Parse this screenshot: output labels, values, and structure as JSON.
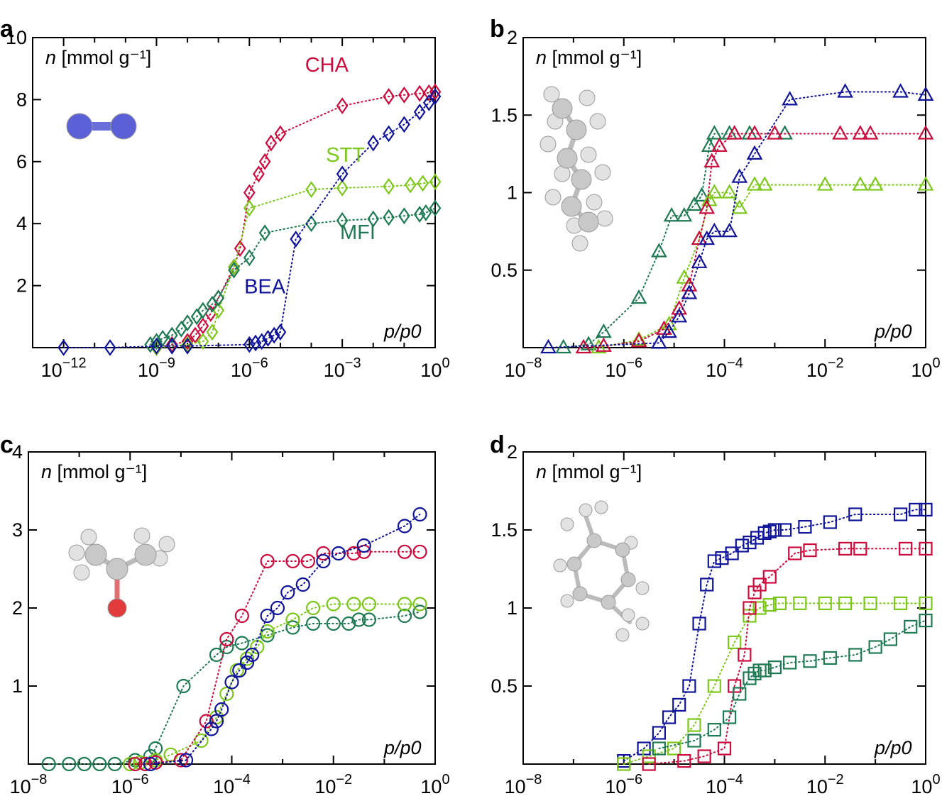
{
  "figure_labels": [
    "a",
    "b",
    "c",
    "d"
  ],
  "colors": {
    "CHA": "#cc0a3c",
    "STT": "#7cc81a",
    "MFI": "#1e7a52",
    "BEA": "#10149b"
  },
  "chart_data": [
    {
      "panel": "a",
      "type": "scatter",
      "marker": "diamond",
      "molecule": "molecule-N2",
      "ylabel": "n [mmol g⁻¹]",
      "ylabel_var": "n",
      "ylabel_unit": "[mmol g⁻¹]",
      "xlabel": "p/p0",
      "xscale": "log",
      "xlim_exp": [
        -13,
        0
      ],
      "xticks_exp": [
        -12,
        -9,
        -6,
        -3,
        0
      ],
      "ylim": [
        0,
        10
      ],
      "yticks": [
        2,
        4,
        6,
        8,
        10
      ],
      "series_labels": [
        {
          "name": "CHA",
          "text": "CHA",
          "lx": -3.5,
          "ly": 8.9
        },
        {
          "name": "STT",
          "text": "STT",
          "lx": -2.9,
          "ly": 6.0
        },
        {
          "name": "MFI",
          "text": "MFI",
          "lx": -2.5,
          "ly": 3.5
        },
        {
          "name": "BEA",
          "text": "BEA",
          "lx": -5.5,
          "ly": 1.75
        }
      ],
      "series": [
        {
          "name": "CHA",
          "x": [
            -9,
            -8.5,
            -8,
            -7.75,
            -7.5,
            -7.25,
            -7,
            -6.5,
            -6.3,
            -6,
            -5.7,
            -5.5,
            -5.3,
            -5,
            -3,
            -1.5,
            -1,
            -0.5,
            -0.2,
            0
          ],
          "y": [
            0,
            0.1,
            0.2,
            0.4,
            0.7,
            1.1,
            1.6,
            2.6,
            3.2,
            5.0,
            5.6,
            6.0,
            6.6,
            6.9,
            7.8,
            8.1,
            8.15,
            8.2,
            8.22,
            8.25
          ]
        },
        {
          "name": "STT",
          "x": [
            -9,
            -8.5,
            -8,
            -7.5,
            -7.2,
            -7,
            -6.5,
            -6,
            -4,
            -3,
            -1.5,
            -0.8,
            -0.4,
            0
          ],
          "y": [
            0,
            0.05,
            0.1,
            0.2,
            0.5,
            1.2,
            2.6,
            4.5,
            5.1,
            5.15,
            5.2,
            5.25,
            5.3,
            5.35
          ]
        },
        {
          "name": "MFI",
          "x": [
            -9.2,
            -9,
            -8.8,
            -8.5,
            -8.2,
            -8,
            -7.7,
            -7.5,
            -7.2,
            -7,
            -6.5,
            -6,
            -5.5,
            -4,
            -3,
            -2,
            -1.5,
            -1,
            -0.5,
            -0.3,
            0
          ],
          "y": [
            0.1,
            0.2,
            0.3,
            0.4,
            0.6,
            0.8,
            1.0,
            1.2,
            1.4,
            1.6,
            2.5,
            2.9,
            3.7,
            4.0,
            4.1,
            4.15,
            4.2,
            4.25,
            4.3,
            4.35,
            4.5
          ]
        },
        {
          "name": "BEA",
          "x": [
            -12,
            -10.5,
            -9,
            -8.5,
            -8,
            -6,
            -5.8,
            -5.6,
            -5.4,
            -5.2,
            -5,
            -4.5,
            -3,
            -2,
            -1.5,
            -1,
            -0.5,
            -0.2,
            0
          ],
          "y": [
            0,
            0,
            0.05,
            0.05,
            0.05,
            0.1,
            0.15,
            0.2,
            0.3,
            0.4,
            0.5,
            3.5,
            5.6,
            6.6,
            6.9,
            7.2,
            7.6,
            7.9,
            8.1
          ]
        }
      ]
    },
    {
      "panel": "b",
      "type": "scatter",
      "marker": "triangle",
      "molecule": "molecule-hexane",
      "ylabel": "n [mmol g⁻¹]",
      "ylabel_var": "n",
      "ylabel_unit": "[mmol g⁻¹]",
      "xlabel": "p/p0",
      "xscale": "log",
      "xlim_exp": [
        -8,
        0
      ],
      "xticks_exp": [
        -8,
        -6,
        -4,
        -2,
        0
      ],
      "ylim": [
        0,
        2
      ],
      "yticks": [
        0.5,
        1,
        1.5,
        2
      ],
      "ytick_labels": [
        "0.5",
        "1",
        "1.5",
        "2"
      ],
      "series": [
        {
          "name": "MFI",
          "x": [
            -7.2,
            -6.7,
            -6.4,
            -5.7,
            -5.3,
            -5.05,
            -4.8,
            -4.6,
            -4.45,
            -4.3,
            -4.2,
            -3.9,
            -3.5,
            -2.8
          ],
          "y": [
            0,
            0.02,
            0.1,
            0.32,
            0.62,
            0.85,
            0.85,
            0.92,
            0.98,
            1.3,
            1.38,
            1.38,
            1.38,
            1.38
          ]
        },
        {
          "name": "STT",
          "x": [
            -6.5,
            -5.7,
            -5.1,
            -4.8,
            -4.5,
            -4.3,
            -4.2,
            -3.9,
            -3.7,
            -3.4,
            -3.2,
            -2,
            -1.3,
            -1,
            0
          ],
          "y": [
            0,
            0.05,
            0.15,
            0.45,
            0.7,
            0.95,
            1.0,
            1.0,
            0.9,
            1.05,
            1.05,
            1.05,
            1.05,
            1.05,
            1.05
          ]
        },
        {
          "name": "CHA",
          "x": [
            -6.8,
            -6.4,
            -5.7,
            -5.2,
            -4.9,
            -4.7,
            -4.5,
            -4.35,
            -4.25,
            -4.1,
            -3.8,
            -3.4,
            -3,
            -1.7,
            -1.3,
            -1.1,
            0
          ],
          "y": [
            0,
            0.01,
            0.04,
            0.12,
            0.25,
            0.4,
            0.7,
            0.9,
            1.2,
            1.3,
            1.38,
            1.38,
            1.38,
            1.38,
            1.38,
            1.38,
            1.38
          ]
        },
        {
          "name": "BEA",
          "x": [
            -7.5,
            -5.3,
            -5.1,
            -4.9,
            -4.7,
            -4.5,
            -4.35,
            -4.2,
            -3.9,
            -3.7,
            -3.4,
            -2.7,
            -1.6,
            -0.5,
            0
          ],
          "y": [
            0,
            0.03,
            0.1,
            0.2,
            0.35,
            0.55,
            0.7,
            0.75,
            0.75,
            1.1,
            1.25,
            1.6,
            1.65,
            1.65,
            1.63
          ]
        }
      ]
    },
    {
      "panel": "c",
      "type": "scatter",
      "marker": "circle",
      "molecule": "molecule-acetone",
      "ylabel": "n [mmol g⁻¹]",
      "ylabel_var": "n",
      "ylabel_unit": "[mmol g⁻¹]",
      "xlabel": "p/p0",
      "xscale": "log",
      "xlim_exp": [
        -8,
        0
      ],
      "xticks_exp": [
        -8,
        -6,
        -4,
        -2,
        0
      ],
      "ylim": [
        0,
        4
      ],
      "yticks": [
        1,
        2,
        3,
        4
      ],
      "series": [
        {
          "name": "MFI",
          "x": [
            -7.6,
            -7.2,
            -6.9,
            -6.6,
            -6.3,
            -5.9,
            -5.6,
            -5.5,
            -4.95,
            -4.3,
            -4.1,
            -3.8,
            -3.3,
            -2.8,
            -2.4,
            -2,
            -1.7,
            -1.5,
            -1.3,
            -0.6,
            -0.3
          ],
          "y": [
            0,
            0,
            0,
            0,
            0,
            0.05,
            0.1,
            0.2,
            1.0,
            1.4,
            1.5,
            1.55,
            1.65,
            1.75,
            1.8,
            1.8,
            1.8,
            1.85,
            1.85,
            1.9,
            1.95
          ]
        },
        {
          "name": "STT",
          "x": [
            -6,
            -5.8,
            -5.5,
            -5.2,
            -4.6,
            -4.3,
            -4.1,
            -3.9,
            -3.7,
            -3.5,
            -3.3,
            -2.8,
            -2.4,
            -2,
            -1.6,
            -1.3,
            -0.6,
            -0.3
          ],
          "y": [
            0,
            0.02,
            0.05,
            0.12,
            0.3,
            0.6,
            0.9,
            1.2,
            1.35,
            1.5,
            1.7,
            1.85,
            2.0,
            2.05,
            2.05,
            2.05,
            2.05,
            2.05
          ]
        },
        {
          "name": "CHA",
          "x": [
            -5.9,
            -5.7,
            -5.5,
            -5,
            -4.5,
            -4.1,
            -3.8,
            -3.3,
            -2.8,
            -2.5,
            -2.2,
            -1.6,
            -1.4,
            -0.6,
            -0.3
          ],
          "y": [
            0,
            0,
            0.02,
            0.05,
            0.55,
            1.6,
            1.9,
            2.6,
            2.6,
            2.6,
            2.7,
            2.7,
            2.72,
            2.72,
            2.72
          ]
        },
        {
          "name": "BEA",
          "x": [
            -5.6,
            -4.9,
            -4.4,
            -4.3,
            -4.2,
            -4.0,
            -3.85,
            -3.7,
            -3.6,
            -3.3,
            -3.1,
            -2.9,
            -2.6,
            -2.2,
            -1.9,
            -1.4,
            -0.6,
            -0.3
          ],
          "y": [
            0,
            0.05,
            0.45,
            0.55,
            0.7,
            1.05,
            1.2,
            1.3,
            1.4,
            1.9,
            2.0,
            2.2,
            2.3,
            2.6,
            2.7,
            2.8,
            3.05,
            3.2
          ]
        }
      ]
    },
    {
      "panel": "d",
      "type": "scatter",
      "marker": "square",
      "molecule": "molecule-xylene",
      "ylabel": "n [mmol g⁻¹]",
      "ylabel_var": "n",
      "ylabel_unit": "[mmol g⁻¹]",
      "xlabel": "p/p0",
      "xscale": "log",
      "xlim_exp": [
        -8,
        0
      ],
      "xticks_exp": [
        -8,
        -6,
        -4,
        -2,
        0
      ],
      "ylim": [
        0,
        2
      ],
      "yticks": [
        0.5,
        1,
        1.5,
        2
      ],
      "ytick_labels": [
        "0.5",
        "1",
        "1.5",
        "2"
      ],
      "series": [
        {
          "name": "BEA",
          "x": [
            -6,
            -5.6,
            -5.3,
            -5.1,
            -4.9,
            -4.7,
            -4.5,
            -4.35,
            -4.2,
            -4.05,
            -3.85,
            -3.65,
            -3.5,
            -3.35,
            -3.2,
            -3.1,
            -3,
            -2.8,
            -2.4,
            -1.9,
            -1.4,
            -0.5,
            -0.2,
            0
          ],
          "y": [
            0.02,
            0.1,
            0.2,
            0.3,
            0.38,
            0.5,
            0.9,
            1.15,
            1.3,
            1.32,
            1.35,
            1.4,
            1.42,
            1.45,
            1.48,
            1.49,
            1.5,
            1.5,
            1.52,
            1.55,
            1.6,
            1.6,
            1.63,
            1.63
          ]
        },
        {
          "name": "STT",
          "x": [
            -6,
            -5.5,
            -5.0,
            -4.6,
            -4.2,
            -3.8,
            -3.5,
            -3.3,
            -3.1,
            -2.9,
            -2.5,
            -2.0,
            -1.6,
            -1.1,
            -0.5,
            0
          ],
          "y": [
            0,
            0.05,
            0.1,
            0.25,
            0.5,
            0.78,
            0.95,
            1.0,
            1.02,
            1.03,
            1.03,
            1.03,
            1.03,
            1.03,
            1.03,
            1.03
          ]
        },
        {
          "name": "CHA",
          "x": [
            -5.5,
            -4.8,
            -4.4,
            -4.0,
            -3.8,
            -3.6,
            -3.5,
            -3.4,
            -3.3,
            -3.1,
            -2.6,
            -2.3,
            -1.6,
            -1.3,
            -0.4,
            0
          ],
          "y": [
            0,
            0.02,
            0.05,
            0.1,
            0.5,
            0.7,
            1.0,
            1.1,
            1.15,
            1.2,
            1.35,
            1.37,
            1.38,
            1.38,
            1.38,
            1.38
          ]
        },
        {
          "name": "MFI",
          "x": [
            -5.3,
            -4.6,
            -4.2,
            -3.9,
            -3.7,
            -3.5,
            -3.4,
            -3.3,
            -3.2,
            -3.0,
            -2.7,
            -2.3,
            -1.9,
            -1.4,
            -1.0,
            -0.7,
            -0.3,
            0
          ],
          "y": [
            0.1,
            0.15,
            0.22,
            0.3,
            0.45,
            0.55,
            0.58,
            0.6,
            0.6,
            0.62,
            0.65,
            0.66,
            0.68,
            0.7,
            0.75,
            0.8,
            0.88,
            0.92
          ]
        }
      ]
    }
  ]
}
